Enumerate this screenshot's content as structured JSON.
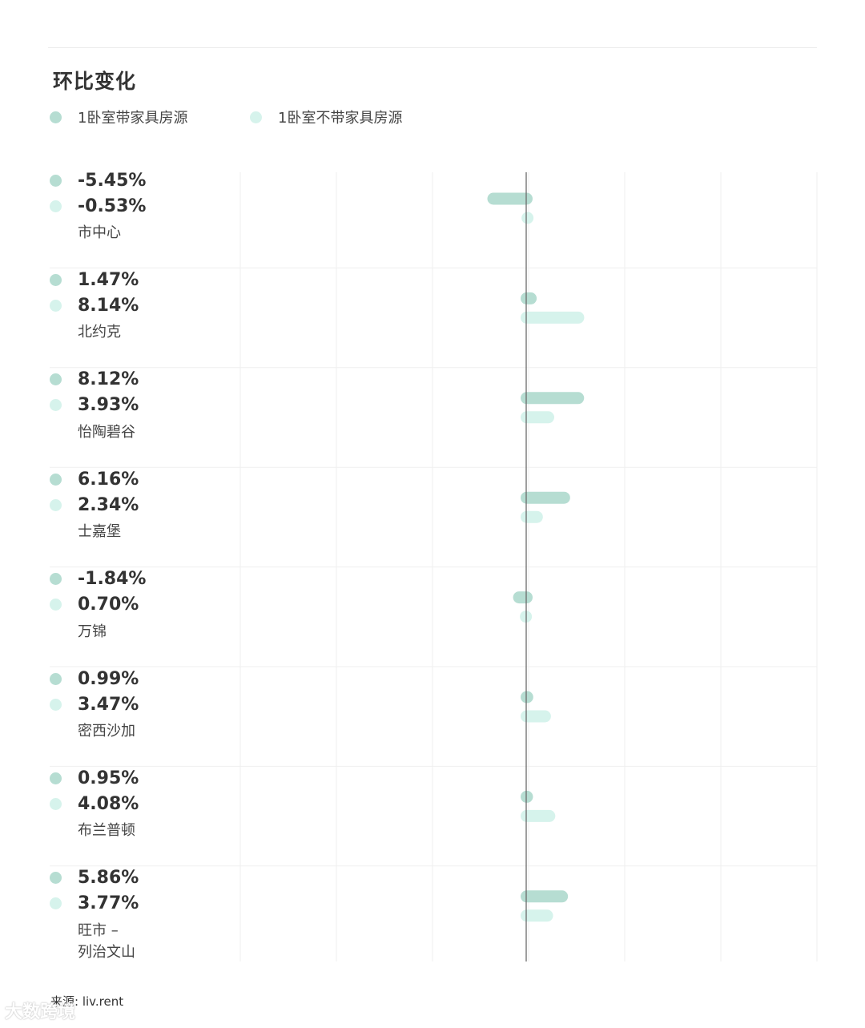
{
  "chart_data": {
    "type": "bar",
    "orientation": "horizontal",
    "title": "环比变化",
    "legend_placement": "top-left",
    "colors": {
      "with_furniture": "#b6ddd2",
      "without_furniture": "#d6f3ec",
      "axis": "#6b6b6b",
      "grid": "#efefef"
    },
    "series": [
      {
        "name": "1卧室带家具房源",
        "color": "#b6ddd2",
        "labels": [
          "-5.45%",
          "1.47%",
          "8.12%",
          "6.16%",
          "-1.84%",
          "0.99%",
          "0.95%",
          "5.86%"
        ],
        "values": [
          -5.45,
          1.47,
          8.12,
          6.16,
          -1.84,
          0.99,
          0.95,
          5.86
        ]
      },
      {
        "name": "1卧室不带家具房源",
        "color": "#d6f3ec",
        "labels": [
          "-0.53%",
          "8.14%",
          "3.93%",
          "2.34%",
          "0.70%",
          "3.47%",
          "4.08%",
          "3.77%"
        ],
        "values": [
          -0.53,
          8.14,
          3.93,
          2.34,
          0.7,
          3.47,
          4.08,
          3.77
        ]
      }
    ],
    "categories": [
      {
        "name": [
          "市中心"
        ]
      },
      {
        "name": [
          "北约克"
        ]
      },
      {
        "name": [
          "怡陶碧谷"
        ]
      },
      {
        "name": [
          "士嘉堡"
        ]
      },
      {
        "name": [
          "万锦"
        ]
      },
      {
        "name": [
          "密西沙加"
        ]
      },
      {
        "name": [
          "布兰普顿"
        ]
      },
      {
        "name": [
          "旺市 –",
          "列治文山"
        ]
      }
    ],
    "xlim": [
      -20,
      20
    ],
    "grid": true,
    "source": "来源: liv.rent"
  },
  "watermark": "大数跨境"
}
